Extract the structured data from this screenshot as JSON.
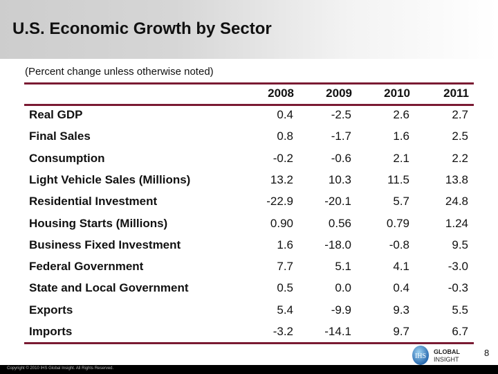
{
  "title": "U.S. Economic Growth by Sector",
  "subtitle": "(Percent change unless otherwise noted)",
  "columns": [
    "2008",
    "2009",
    "2010",
    "2011"
  ],
  "rows": [
    {
      "label": "Real GDP",
      "values": [
        "0.4",
        "-2.5",
        "2.6",
        "2.7"
      ]
    },
    {
      "label": "Final Sales",
      "values": [
        "0.8",
        "-1.7",
        "1.6",
        "2.5"
      ]
    },
    {
      "label": "Consumption",
      "values": [
        "-0.2",
        "-0.6",
        "2.1",
        "2.2"
      ]
    },
    {
      "label": "Light Vehicle Sales (Millions)",
      "values": [
        "13.2",
        "10.3",
        "11.5",
        "13.8"
      ]
    },
    {
      "label": "Residential Investment",
      "values": [
        "-22.9",
        "-20.1",
        "5.7",
        "24.8"
      ]
    },
    {
      "label": "Housing Starts (Millions)",
      "values": [
        "0.90",
        "0.56",
        "0.79",
        "1.24"
      ]
    },
    {
      "label": "Business Fixed Investment",
      "values": [
        "1.6",
        "-18.0",
        "-0.8",
        "9.5"
      ]
    },
    {
      "label": "Federal Government",
      "values": [
        "7.7",
        "5.1",
        "4.1",
        "-3.0"
      ]
    },
    {
      "label": "State and Local Government",
      "values": [
        "0.5",
        "0.0",
        "0.4",
        "-0.3"
      ]
    },
    {
      "label": "Exports",
      "values": [
        "5.4",
        "-9.9",
        "9.3",
        "5.5"
      ]
    },
    {
      "label": "Imports",
      "values": [
        "-3.2",
        "-14.1",
        "9.7",
        "6.7"
      ]
    }
  ],
  "logo": {
    "mark": "IHS",
    "line1": "GLOBAL",
    "line2": "INSIGHT"
  },
  "page_number": "8",
  "copyright": "Copyright © 2010 IHS Global Insight. All Rights Reserved.",
  "colors": {
    "rule": "#7a1a32",
    "footer": "#000000"
  }
}
